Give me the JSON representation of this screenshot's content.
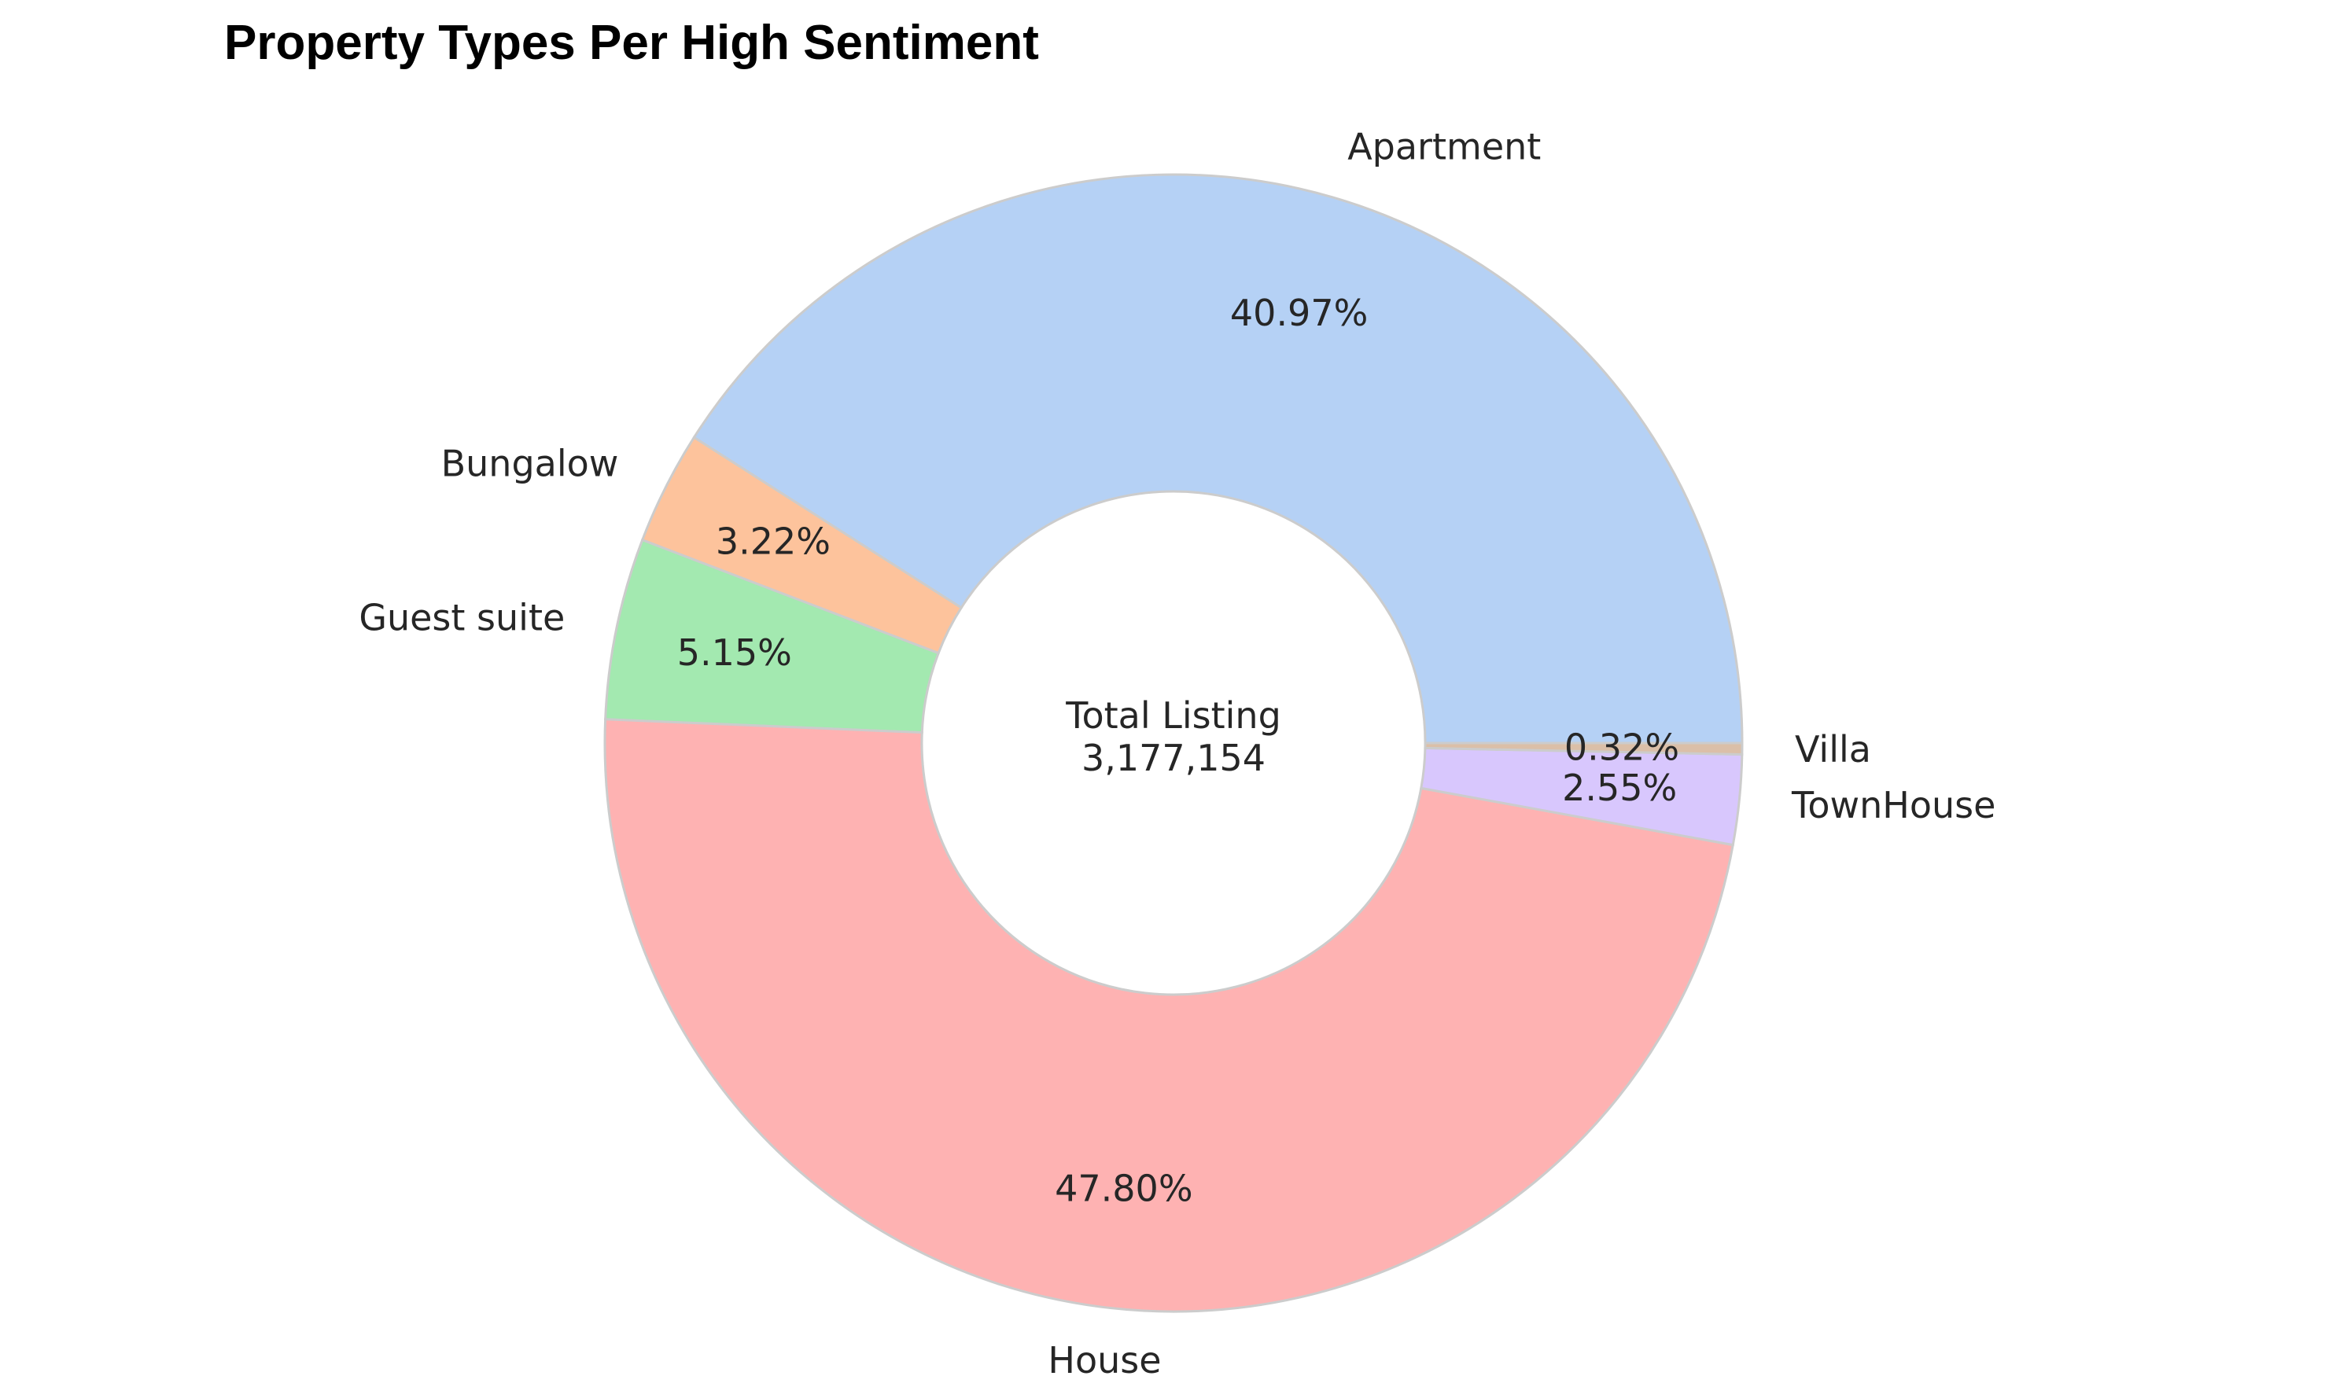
{
  "chart_data": {
    "type": "pie",
    "variant": "donut",
    "title": "Property Types Per High Sentiment",
    "center_label": "Total Listing",
    "center_value": "3,177,154",
    "slices": [
      {
        "label": "Apartment",
        "value": 40.97,
        "pct_label": "40.97%",
        "color": "#b5d1f5"
      },
      {
        "label": "Bungalow",
        "value": 3.22,
        "pct_label": "3.22%",
        "color": "#fdc39c"
      },
      {
        "label": "Guest suite",
        "value": 5.15,
        "pct_label": "5.15%",
        "color": "#a3e9b0"
      },
      {
        "label": "House",
        "value": 47.8,
        "pct_label": "47.80%",
        "color": "#feb2b2"
      },
      {
        "label": "TownHouse",
        "value": 2.55,
        "pct_label": "2.55%",
        "color": "#d8c7fd"
      },
      {
        "label": "Villa",
        "value": 0.32,
        "pct_label": "0.32%",
        "color": "#dbbfa8"
      }
    ],
    "start_angle_deg": 0,
    "direction": "counterclockwise",
    "edge_color": "#cccccc"
  }
}
